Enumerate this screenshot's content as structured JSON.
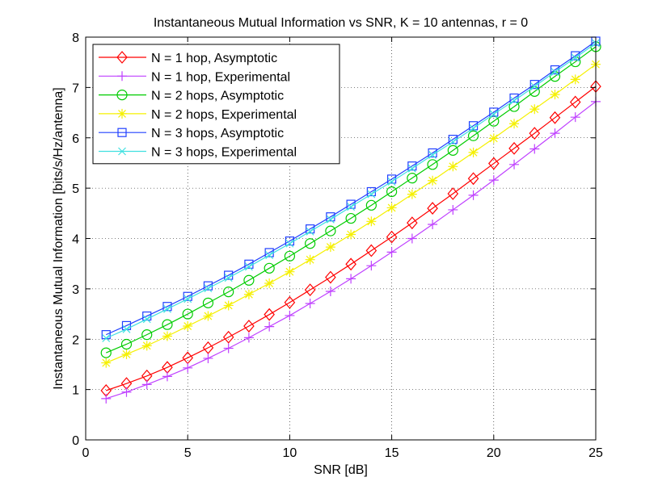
{
  "chart_data": {
    "type": "line",
    "title": "Instantaneous Mutual Information vs SNR, K = 10 antennas, r = 0",
    "xlabel": "SNR [dB]",
    "ylabel": "Instantaneous Mutual Information [bits/s/Hz/antenna]",
    "xlim": [
      0,
      25
    ],
    "ylim": [
      0,
      8
    ],
    "xticks": [
      0,
      5,
      10,
      15,
      20,
      25
    ],
    "yticks": [
      0,
      1,
      2,
      3,
      4,
      5,
      6,
      7,
      8
    ],
    "grid": true,
    "legend_position": "top-left",
    "x": [
      1,
      2,
      3,
      4,
      5,
      6,
      7,
      8,
      9,
      10,
      11,
      12,
      13,
      14,
      15,
      16,
      17,
      18,
      19,
      20,
      21,
      22,
      23,
      24,
      25
    ],
    "series": [
      {
        "name": "N = 1 hop, Asymptotic",
        "color": "#ff0000",
        "marker": "diamond",
        "values": [
          0.98,
          1.12,
          1.27,
          1.44,
          1.63,
          1.83,
          2.04,
          2.26,
          2.49,
          2.73,
          2.98,
          3.23,
          3.49,
          3.76,
          4.03,
          4.31,
          4.6,
          4.89,
          5.19,
          5.49,
          5.79,
          6.09,
          6.4,
          6.71,
          7.02
        ]
      },
      {
        "name": "N = 1 hop, Experimental",
        "color": "#bf40ff",
        "marker": "plus",
        "values": [
          0.82,
          0.95,
          1.1,
          1.26,
          1.43,
          1.62,
          1.82,
          2.03,
          2.25,
          2.47,
          2.71,
          2.95,
          3.2,
          3.46,
          3.73,
          4.0,
          4.28,
          4.57,
          4.86,
          5.16,
          5.47,
          5.78,
          6.09,
          6.41,
          6.72
        ]
      },
      {
        "name": "N = 2 hops, Asymptotic",
        "color": "#00cc00",
        "marker": "circle",
        "values": [
          1.73,
          1.9,
          2.09,
          2.29,
          2.5,
          2.72,
          2.94,
          3.17,
          3.41,
          3.65,
          3.9,
          4.15,
          4.4,
          4.66,
          4.93,
          5.2,
          5.47,
          5.75,
          6.04,
          6.33,
          6.62,
          6.92,
          7.22,
          7.51,
          7.81
        ]
      },
      {
        "name": "N = 2 hops, Experimental",
        "color": "#f5f000",
        "marker": "star",
        "values": [
          1.53,
          1.7,
          1.87,
          2.06,
          2.26,
          2.46,
          2.67,
          2.89,
          3.11,
          3.34,
          3.58,
          3.83,
          4.08,
          4.34,
          4.61,
          4.88,
          5.15,
          5.43,
          5.71,
          5.99,
          6.28,
          6.57,
          6.86,
          7.16,
          7.46
        ]
      },
      {
        "name": "N = 3 hops, Asymptotic",
        "color": "#2040ff",
        "marker": "square",
        "values": [
          2.09,
          2.27,
          2.46,
          2.65,
          2.85,
          3.06,
          3.27,
          3.49,
          3.72,
          3.95,
          4.19,
          4.43,
          4.68,
          4.93,
          5.18,
          5.44,
          5.7,
          5.97,
          6.24,
          6.51,
          6.79,
          7.06,
          7.35,
          7.63,
          7.92
        ]
      },
      {
        "name": "N = 3 hops, Experimental",
        "color": "#40e0e0",
        "marker": "x",
        "values": [
          2.02,
          2.2,
          2.4,
          2.6,
          2.8,
          3.01,
          3.22,
          3.44,
          3.67,
          3.9,
          4.14,
          4.38,
          4.63,
          4.88,
          5.13,
          5.39,
          5.66,
          5.92,
          6.19,
          6.47,
          6.74,
          7.02,
          7.31,
          7.59,
          7.88
        ]
      }
    ]
  }
}
